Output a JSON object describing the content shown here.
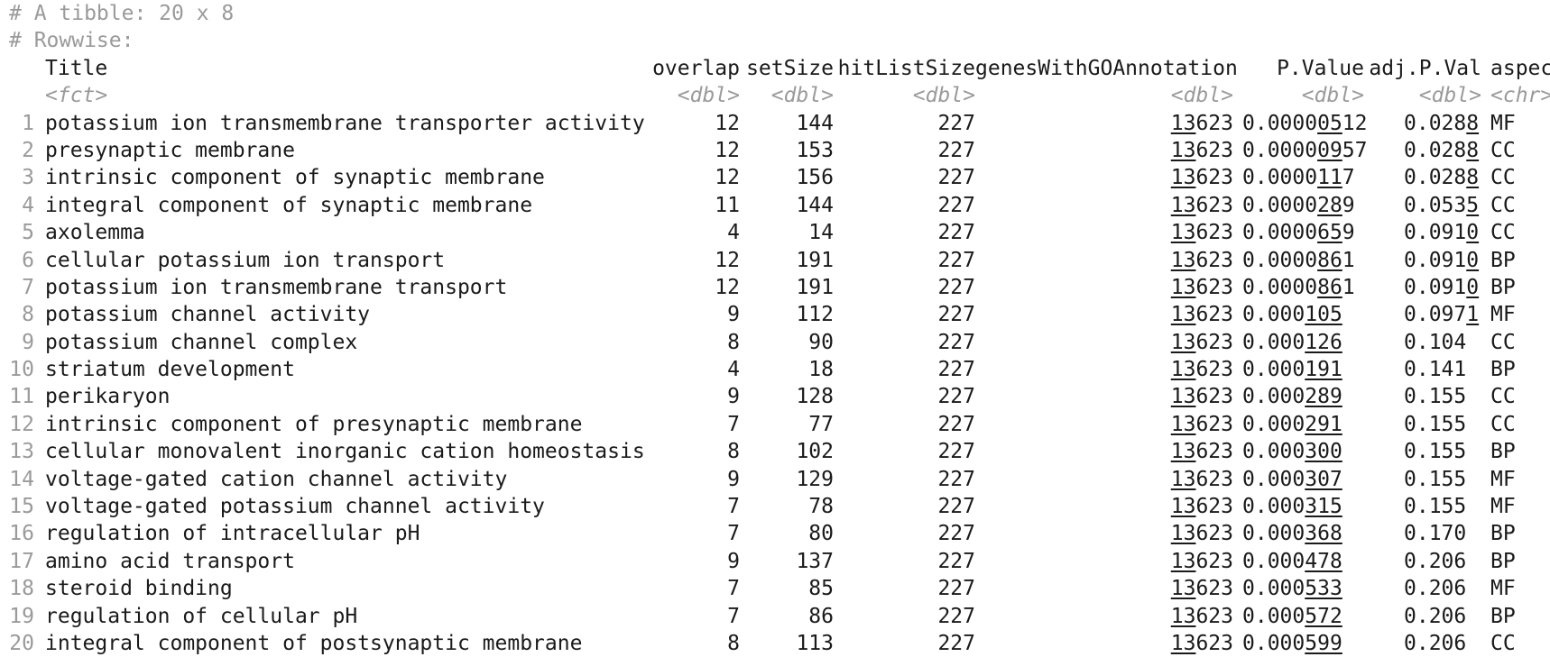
{
  "meta": {
    "line1": "# A tibble: 20 x 8",
    "line2": "# Rowwise:"
  },
  "columns": [
    {
      "name": "Title",
      "type": "<fct>"
    },
    {
      "name": "overlap",
      "type": "<dbl>"
    },
    {
      "name": "setSize",
      "type": "<dbl>"
    },
    {
      "name": "hitListSize",
      "type": "<dbl>"
    },
    {
      "name": "genesWithGOAnnotation",
      "type": "<dbl>"
    },
    {
      "name": "P.Value",
      "type": "<dbl>"
    },
    {
      "name": "adj.P.Val",
      "type": "<dbl>"
    },
    {
      "name": "aspect",
      "type": "<chr>"
    }
  ],
  "rows": [
    {
      "n": "1",
      "title": "potassium ion transmembrane transporter activity",
      "overlap": "12",
      "setSize": "144",
      "hit": "227",
      "genes_u": "13",
      "genes_r": "623",
      "p_pre": "0.0000",
      "p_u": "05",
      "p_post": "12",
      "adj_pre": "0.028",
      "adj_u": "8",
      "adj_post": "",
      "aspect": "MF"
    },
    {
      "n": "2",
      "title": "presynaptic membrane",
      "overlap": "12",
      "setSize": "153",
      "hit": "227",
      "genes_u": "13",
      "genes_r": "623",
      "p_pre": "0.0000",
      "p_u": "09",
      "p_post": "57",
      "adj_pre": "0.028",
      "adj_u": "8",
      "adj_post": "",
      "aspect": "CC"
    },
    {
      "n": "3",
      "title": "intrinsic component of synaptic membrane",
      "overlap": "12",
      "setSize": "156",
      "hit": "227",
      "genes_u": "13",
      "genes_r": "623",
      "p_pre": "0.0000",
      "p_u": "11",
      "p_post": "7",
      "adj_pre": "0.028",
      "adj_u": "8",
      "adj_post": "",
      "aspect": "CC"
    },
    {
      "n": "4",
      "title": "integral component of synaptic membrane",
      "overlap": "11",
      "setSize": "144",
      "hit": "227",
      "genes_u": "13",
      "genes_r": "623",
      "p_pre": "0.0000",
      "p_u": "28",
      "p_post": "9",
      "adj_pre": "0.053",
      "adj_u": "5",
      "adj_post": "",
      "aspect": "CC"
    },
    {
      "n": "5",
      "title": "axolemma",
      "overlap": "4",
      "setSize": "14",
      "hit": "227",
      "genes_u": "13",
      "genes_r": "623",
      "p_pre": "0.0000",
      "p_u": "65",
      "p_post": "9",
      "adj_pre": "0.091",
      "adj_u": "0",
      "adj_post": "",
      "aspect": "CC"
    },
    {
      "n": "6",
      "title": "cellular potassium ion transport",
      "overlap": "12",
      "setSize": "191",
      "hit": "227",
      "genes_u": "13",
      "genes_r": "623",
      "p_pre": "0.0000",
      "p_u": "86",
      "p_post": "1",
      "adj_pre": "0.091",
      "adj_u": "0",
      "adj_post": "",
      "aspect": "BP"
    },
    {
      "n": "7",
      "title": "potassium ion transmembrane transport",
      "overlap": "12",
      "setSize": "191",
      "hit": "227",
      "genes_u": "13",
      "genes_r": "623",
      "p_pre": "0.0000",
      "p_u": "86",
      "p_post": "1",
      "adj_pre": "0.091",
      "adj_u": "0",
      "adj_post": "",
      "aspect": "BP"
    },
    {
      "n": "8",
      "title": "potassium channel activity",
      "overlap": "9",
      "setSize": "112",
      "hit": "227",
      "genes_u": "13",
      "genes_r": "623",
      "p_pre": "0.000",
      "p_u": "105",
      "p_post": "",
      "adj_pre": "0.097",
      "adj_u": "1",
      "adj_post": "",
      "aspect": "MF"
    },
    {
      "n": "9",
      "title": "potassium channel complex",
      "overlap": "8",
      "setSize": "90",
      "hit": "227",
      "genes_u": "13",
      "genes_r": "623",
      "p_pre": "0.000",
      "p_u": "126",
      "p_post": "",
      "adj_pre": "0.104",
      "adj_u": "",
      "adj_post": "",
      "aspect": "CC"
    },
    {
      "n": "10",
      "title": "striatum development",
      "overlap": "4",
      "setSize": "18",
      "hit": "227",
      "genes_u": "13",
      "genes_r": "623",
      "p_pre": "0.000",
      "p_u": "191",
      "p_post": "",
      "adj_pre": "0.141",
      "adj_u": "",
      "adj_post": "",
      "aspect": "BP"
    },
    {
      "n": "11",
      "title": "perikaryon",
      "overlap": "9",
      "setSize": "128",
      "hit": "227",
      "genes_u": "13",
      "genes_r": "623",
      "p_pre": "0.000",
      "p_u": "289",
      "p_post": "",
      "adj_pre": "0.155",
      "adj_u": "",
      "adj_post": "",
      "aspect": "CC"
    },
    {
      "n": "12",
      "title": "intrinsic component of presynaptic membrane",
      "overlap": "7",
      "setSize": "77",
      "hit": "227",
      "genes_u": "13",
      "genes_r": "623",
      "p_pre": "0.000",
      "p_u": "291",
      "p_post": "",
      "adj_pre": "0.155",
      "adj_u": "",
      "adj_post": "",
      "aspect": "CC"
    },
    {
      "n": "13",
      "title": "cellular monovalent inorganic cation homeostasis",
      "overlap": "8",
      "setSize": "102",
      "hit": "227",
      "genes_u": "13",
      "genes_r": "623",
      "p_pre": "0.000",
      "p_u": "300",
      "p_post": "",
      "adj_pre": "0.155",
      "adj_u": "",
      "adj_post": "",
      "aspect": "BP"
    },
    {
      "n": "14",
      "title": "voltage-gated cation channel activity",
      "overlap": "9",
      "setSize": "129",
      "hit": "227",
      "genes_u": "13",
      "genes_r": "623",
      "p_pre": "0.000",
      "p_u": "307",
      "p_post": "",
      "adj_pre": "0.155",
      "adj_u": "",
      "adj_post": "",
      "aspect": "MF"
    },
    {
      "n": "15",
      "title": "voltage-gated potassium channel activity",
      "overlap": "7",
      "setSize": "78",
      "hit": "227",
      "genes_u": "13",
      "genes_r": "623",
      "p_pre": "0.000",
      "p_u": "315",
      "p_post": "",
      "adj_pre": "0.155",
      "adj_u": "",
      "adj_post": "",
      "aspect": "MF"
    },
    {
      "n": "16",
      "title": "regulation of intracellular pH",
      "overlap": "7",
      "setSize": "80",
      "hit": "227",
      "genes_u": "13",
      "genes_r": "623",
      "p_pre": "0.000",
      "p_u": "368",
      "p_post": "",
      "adj_pre": "0.170",
      "adj_u": "",
      "adj_post": "",
      "aspect": "BP"
    },
    {
      "n": "17",
      "title": "amino acid transport",
      "overlap": "9",
      "setSize": "137",
      "hit": "227",
      "genes_u": "13",
      "genes_r": "623",
      "p_pre": "0.000",
      "p_u": "478",
      "p_post": "",
      "adj_pre": "0.206",
      "adj_u": "",
      "adj_post": "",
      "aspect": "BP"
    },
    {
      "n": "18",
      "title": "steroid binding",
      "overlap": "7",
      "setSize": "85",
      "hit": "227",
      "genes_u": "13",
      "genes_r": "623",
      "p_pre": "0.000",
      "p_u": "533",
      "p_post": "",
      "adj_pre": "0.206",
      "adj_u": "",
      "adj_post": "",
      "aspect": "MF"
    },
    {
      "n": "19",
      "title": "regulation of cellular pH",
      "overlap": "7",
      "setSize": "86",
      "hit": "227",
      "genes_u": "13",
      "genes_r": "623",
      "p_pre": "0.000",
      "p_u": "572",
      "p_post": "",
      "adj_pre": "0.206",
      "adj_u": "",
      "adj_post": "",
      "aspect": "BP"
    },
    {
      "n": "20",
      "title": "integral component of postsynaptic membrane",
      "overlap": "8",
      "setSize": "113",
      "hit": "227",
      "genes_u": "13",
      "genes_r": "623",
      "p_pre": "0.000",
      "p_u": "599",
      "p_post": "",
      "adj_pre": "0.206",
      "adj_u": "",
      "adj_post": "",
      "aspect": "CC"
    }
  ],
  "colors": {
    "text": "#1a1a1a",
    "muted": "#9a9a9a",
    "background": "#ffffff"
  }
}
